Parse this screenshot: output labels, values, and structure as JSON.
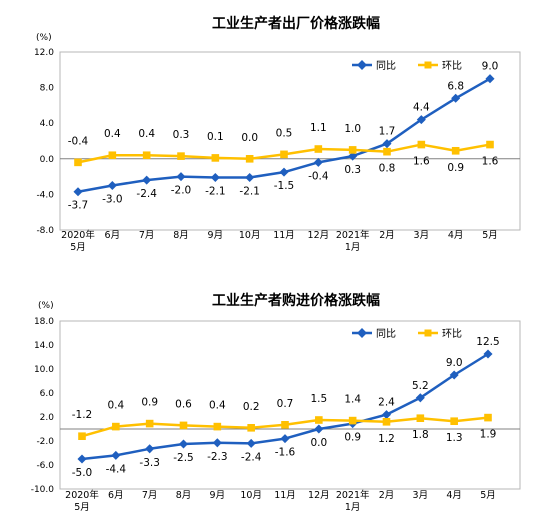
{
  "colors": {
    "yoy": "#1f5fbf",
    "mom": "#ffc000",
    "frame": "#b7b7b7",
    "zero": "#808080"
  },
  "chart_data": [
    {
      "type": "line",
      "title": "工业生产者出厂价格涨跌幅",
      "ylabel": "(%)",
      "ylim": [
        -8.0,
        12.0
      ],
      "yticks": [
        "12.0",
        "8.0",
        "4.0",
        "0.0",
        "-4.0",
        "-8.0"
      ],
      "ytick_values": [
        12,
        8,
        4,
        0,
        -4,
        -8
      ],
      "categories": [
        "2020年5月",
        "6月",
        "7月",
        "8月",
        "9月",
        "10月",
        "11月",
        "12月",
        "2021年1月",
        "2月",
        "3月",
        "4月",
        "5月"
      ],
      "category_lines": [
        [
          "2020年",
          "5月"
        ],
        [
          "6月"
        ],
        [
          "7月"
        ],
        [
          "8月"
        ],
        [
          "9月"
        ],
        [
          "10月"
        ],
        [
          "11月"
        ],
        [
          "12月"
        ],
        [
          "2021年",
          "1月"
        ],
        [
          "2月"
        ],
        [
          "3月"
        ],
        [
          "4月"
        ],
        [
          "5月"
        ]
      ],
      "legend_position": "top-right",
      "series": [
        {
          "name": "同比",
          "color": "#1f5fbf",
          "marker": "diamond",
          "values": [
            -3.7,
            -3.0,
            -2.4,
            -2.0,
            -2.1,
            -2.1,
            -1.5,
            -0.4,
            0.3,
            1.7,
            4.4,
            6.8,
            9.0
          ],
          "labels": [
            "-3.7",
            "-3.0",
            "-2.4",
            "-2.0",
            "-2.1",
            "-2.1",
            "-1.5",
            "-0.4",
            "0.3",
            "1.7",
            "4.4",
            "6.8",
            "9.0"
          ]
        },
        {
          "name": "环比",
          "color": "#ffc000",
          "marker": "square",
          "values": [
            -0.4,
            0.4,
            0.4,
            0.3,
            0.1,
            0.0,
            0.5,
            1.1,
            1.0,
            0.8,
            1.6,
            0.9,
            1.6
          ],
          "labels": [
            "-0.4",
            "0.4",
            "0.4",
            "0.3",
            "0.1",
            "0.0",
            "0.5",
            "1.1",
            "1.0",
            "0.8",
            "1.6",
            "0.9",
            "1.6"
          ]
        }
      ]
    },
    {
      "type": "line",
      "title": "工业生产者购进价格涨跌幅",
      "ylabel": "(%)",
      "ylim": [
        -10.0,
        18.0
      ],
      "yticks": [
        "18.0",
        "14.0",
        "10.0",
        "6.0",
        "2.0",
        "-2.0",
        "-6.0",
        "-10.0"
      ],
      "ytick_values": [
        18,
        14,
        10,
        6,
        2,
        -2,
        -6,
        -10
      ],
      "categories": [
        "2020年5月",
        "6月",
        "7月",
        "8月",
        "9月",
        "10月",
        "11月",
        "12月",
        "2021年1月",
        "2月",
        "3月",
        "4月",
        "5月"
      ],
      "category_lines": [
        [
          "2020年",
          "5月"
        ],
        [
          "6月"
        ],
        [
          "7月"
        ],
        [
          "8月"
        ],
        [
          "9月"
        ],
        [
          "10月"
        ],
        [
          "11月"
        ],
        [
          "12月"
        ],
        [
          "2021年",
          "1月"
        ],
        [
          "2月"
        ],
        [
          "3月"
        ],
        [
          "4月"
        ],
        [
          "5月"
        ]
      ],
      "legend_position": "top-right",
      "series": [
        {
          "name": "同比",
          "color": "#1f5fbf",
          "marker": "diamond",
          "values": [
            -5.0,
            -4.4,
            -3.3,
            -2.5,
            -2.3,
            -2.4,
            -1.6,
            0.0,
            0.9,
            2.4,
            5.2,
            9.0,
            12.5
          ],
          "labels": [
            "-5.0",
            "-4.4",
            "-3.3",
            "-2.5",
            "-2.3",
            "-2.4",
            "-1.6",
            "0.0",
            "0.9",
            "2.4",
            "5.2",
            "9.0",
            "12.5"
          ]
        },
        {
          "name": "环比",
          "color": "#ffc000",
          "marker": "square",
          "values": [
            -1.2,
            0.4,
            0.9,
            0.6,
            0.4,
            0.2,
            0.7,
            1.5,
            1.4,
            1.2,
            1.8,
            1.3,
            1.9
          ],
          "labels": [
            "-1.2",
            "0.4",
            "0.9",
            "0.6",
            "0.4",
            "0.2",
            "0.7",
            "1.5",
            "1.4",
            "1.2",
            "1.8",
            "1.3",
            "1.9"
          ]
        }
      ]
    }
  ]
}
